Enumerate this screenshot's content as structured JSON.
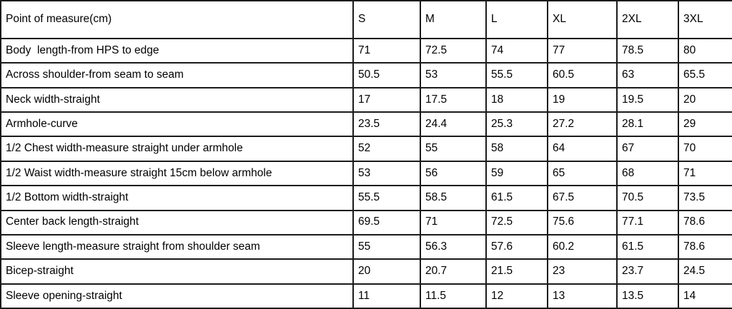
{
  "table": {
    "columns": [
      "Point of measure(cm)",
      "S",
      "M",
      "L",
      "XL",
      "2XL",
      "3XL"
    ],
    "rows": [
      {
        "label": "Body  length-from HPS to edge",
        "values": [
          "71",
          "72.5",
          "74",
          "77",
          "78.5",
          "80"
        ]
      },
      {
        "label": "Across shoulder-from seam to seam",
        "values": [
          "50.5",
          "53",
          "55.5",
          "60.5",
          "63",
          "65.5"
        ]
      },
      {
        "label": "Neck width-straight",
        "values": [
          "17",
          "17.5",
          "18",
          "19",
          "19.5",
          "20"
        ]
      },
      {
        "label": "Armhole-curve",
        "values": [
          "23.5",
          "24.4",
          "25.3",
          "27.2",
          "28.1",
          "29"
        ]
      },
      {
        "label": "1/2 Chest width-measure straight under armhole",
        "values": [
          "52",
          "55",
          "58",
          "64",
          "67",
          "70"
        ]
      },
      {
        "label": "1/2 Waist width-measure straight 15cm below armhole",
        "values": [
          "53",
          "56",
          "59",
          "65",
          "68",
          "71"
        ]
      },
      {
        "label": "1/2 Bottom width-straight",
        "values": [
          "55.5",
          "58.5",
          "61.5",
          "67.5",
          "70.5",
          "73.5"
        ]
      },
      {
        "label": "Center back length-straight",
        "values": [
          "69.5",
          "71",
          "72.5",
          "75.6",
          "77.1",
          "78.6"
        ]
      },
      {
        "label": "Sleeve length-measure straight from shoulder seam",
        "values": [
          "55",
          "56.3",
          "57.6",
          "60.2",
          "61.5",
          "78.6"
        ]
      },
      {
        "label": "Bicep-straight",
        "values": [
          "20",
          "20.7",
          "21.5",
          "23",
          "23.7",
          "24.5"
        ]
      },
      {
        "label": "Sleeve opening-straight",
        "values": [
          "11",
          "11.5",
          "12",
          "13",
          "13.5",
          "14"
        ]
      }
    ]
  },
  "colors": {
    "border": "#1a1a1a",
    "text": "#000000",
    "background": "#ffffff"
  }
}
